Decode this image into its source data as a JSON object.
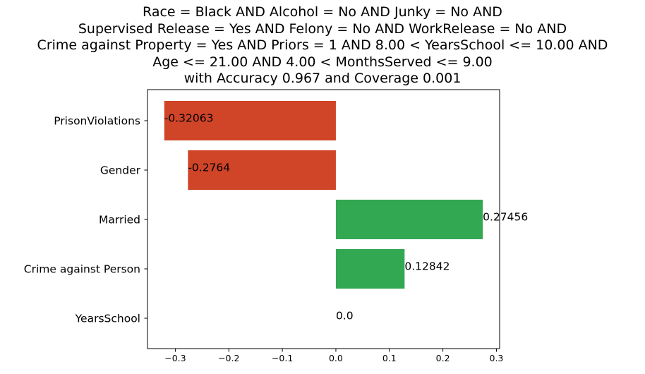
{
  "chart_data": {
    "type": "bar",
    "orientation": "horizontal",
    "title": [
      "Race = Black AND Alcohol = No AND Junky = No AND",
      "Supervised Release = Yes AND Felony = No AND WorkRelease = No AND",
      "Crime against Property = Yes AND Priors = 1 AND 8.00 < YearsSchool <= 10.00 AND",
      "Age <= 21.00 AND 4.00 < MonthsServed <= 9.00",
      "with Accuracy 0.967 and Coverage 0.001"
    ],
    "categories": [
      "PrisonViolations",
      "Gender",
      "Married",
      "Crime against Person",
      "YearsSchool"
    ],
    "values": [
      -0.32063,
      -0.2764,
      0.27456,
      0.12842,
      0.0
    ],
    "value_labels": [
      "-0.32063",
      "-0.2764",
      "0.27456",
      "0.12842",
      "0.0"
    ],
    "xlabel": "",
    "ylabel": "",
    "xlim": [
      -0.352,
      0.306
    ],
    "xticks": [
      -0.3,
      -0.2,
      -0.1,
      0.0,
      0.1,
      0.2,
      0.3
    ],
    "xtick_labels": [
      "−0.3",
      "−0.2",
      "−0.1",
      "0.0",
      "0.1",
      "0.2",
      "0.3"
    ],
    "grid": false,
    "colors": {
      "negative": "#d04428",
      "positive": "#33a852",
      "axis": "#000000",
      "text": "#000000"
    }
  }
}
